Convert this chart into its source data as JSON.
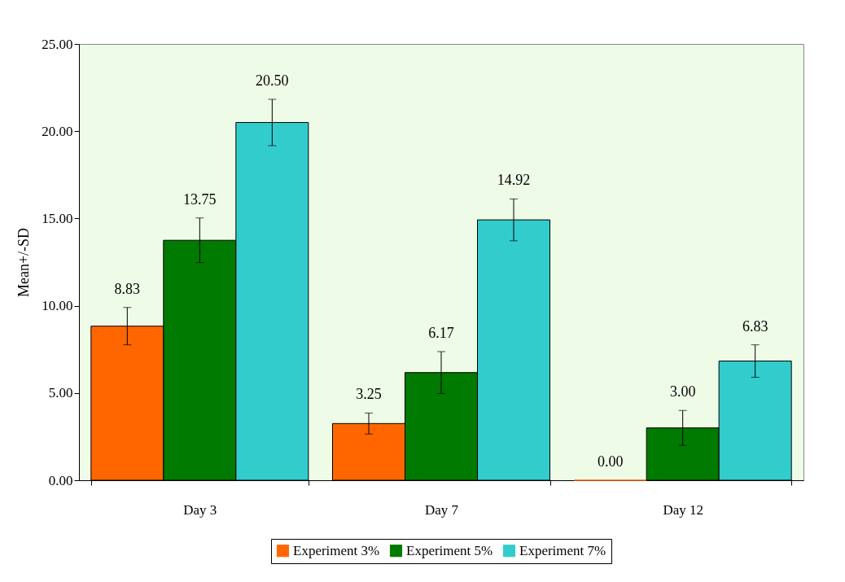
{
  "chart_data": {
    "type": "bar",
    "ylabel": "Mean+/-SD",
    "categories": [
      "Day 3",
      "Day 7",
      "Day 12"
    ],
    "ylim": [
      0,
      25
    ],
    "yticks": [
      {
        "value": 0,
        "label": "0.00"
      },
      {
        "value": 5,
        "label": "5.00"
      },
      {
        "value": 10,
        "label": "10.00"
      },
      {
        "value": 15,
        "label": "15.00"
      },
      {
        "value": 20,
        "label": "20.00"
      },
      {
        "value": 25,
        "label": "25.00"
      }
    ],
    "grid": false,
    "legend": "bottom",
    "series": [
      {
        "name": "Experiment 3%",
        "color": "#ff6600",
        "values": [
          8.83,
          3.25,
          0
        ],
        "errors": [
          1.07,
          0.6,
          null
        ],
        "value_labels": [
          "8.83",
          "3.25",
          "0.00"
        ]
      },
      {
        "name": "Experiment 5%",
        "color": "#007a00",
        "values": [
          13.75,
          6.17,
          3.0
        ],
        "errors": [
          1.28,
          1.2,
          1.0
        ],
        "value_labels": [
          "13.75",
          "6.17",
          "3.00"
        ]
      },
      {
        "name": "Experiment 7%",
        "color": "#33cccc",
        "values": [
          20.5,
          14.92,
          6.83
        ],
        "errors": [
          1.33,
          1.2,
          0.93
        ],
        "value_labels": [
          "20.50",
          "14.92",
          "6.83"
        ]
      }
    ]
  }
}
